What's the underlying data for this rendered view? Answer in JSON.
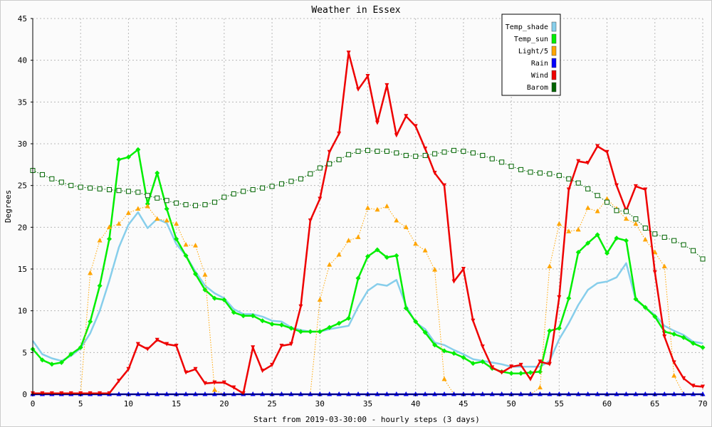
{
  "chart_data": {
    "type": "line",
    "title": "Weather in Essex",
    "xlabel": "Start from 2019-03-30:00 - hourly steps (3 days)",
    "ylabel": "Degrees",
    "xlim": [
      0,
      70
    ],
    "ylim": [
      0,
      45
    ],
    "xticks": [
      0,
      5,
      10,
      15,
      20,
      25,
      30,
      35,
      40,
      45,
      50,
      55,
      60,
      65,
      70
    ],
    "yticks": [
      0,
      5,
      10,
      15,
      20,
      25,
      30,
      35,
      40,
      45
    ],
    "grid": true,
    "legend_position": "top-right",
    "series": [
      {
        "name": "Temp_shade",
        "color": "#87ceeb",
        "line": "solid",
        "marker": "none",
        "values": [
          6.4,
          4.8,
          4.3,
          4.0,
          4.6,
          5.5,
          7.3,
          10.0,
          13.6,
          17.6,
          20.3,
          21.8,
          19.9,
          21.0,
          20.5,
          18.0,
          16.6,
          14.7,
          13.0,
          12.1,
          11.5,
          10.2,
          9.6,
          9.6,
          9.3,
          8.8,
          8.7,
          8.0,
          7.7,
          7.5,
          7.5,
          7.8,
          8.0,
          8.2,
          10.5,
          12.4,
          13.2,
          13.0,
          13.7,
          10.6,
          8.6,
          7.8,
          6.2,
          5.9,
          5.3,
          4.8,
          4.2,
          4.0,
          3.8,
          3.6,
          3.3,
          3.3,
          3.3,
          3.3,
          4.0,
          6.6,
          8.5,
          10.7,
          12.5,
          13.3,
          13.5,
          14.0,
          15.7,
          11.3,
          10.4,
          9.5,
          8.2,
          7.6,
          7.1,
          6.3,
          6.1
        ]
      },
      {
        "name": "Temp_sun",
        "color": "#00ee00",
        "line": "solid",
        "marker": "diamond",
        "values": [
          5.4,
          4.1,
          3.6,
          3.8,
          4.8,
          5.6,
          8.7,
          13.0,
          18.6,
          28.1,
          28.4,
          29.3,
          22.8,
          26.5,
          22.2,
          18.6,
          16.6,
          14.4,
          12.5,
          11.5,
          11.3,
          9.8,
          9.4,
          9.4,
          8.8,
          8.4,
          8.3,
          7.9,
          7.5,
          7.5,
          7.5,
          8.0,
          8.5,
          9.1,
          13.9,
          16.5,
          17.3,
          16.4,
          16.6,
          10.3,
          8.7,
          7.4,
          5.9,
          5.2,
          4.9,
          4.4,
          3.7,
          3.9,
          3.1,
          2.7,
          2.5,
          2.5,
          2.6,
          2.7,
          7.6,
          7.9,
          11.5,
          17.0,
          18.1,
          19.1,
          16.9,
          18.7,
          18.4,
          11.4,
          10.4,
          9.3,
          7.5,
          7.2,
          6.8,
          6.1,
          5.6
        ]
      },
      {
        "name": "Light/5",
        "color": "#ffa500",
        "line": "dotted",
        "marker": "triangle",
        "values": [
          0,
          0,
          0,
          0,
          0,
          0,
          14.5,
          18.4,
          20.0,
          20.4,
          21.7,
          22.2,
          22.5,
          21.0,
          20.8,
          20.4,
          17.9,
          17.8,
          14.3,
          0.5,
          0,
          0,
          0,
          0,
          0,
          0,
          0,
          0,
          0,
          0,
          11.3,
          15.5,
          16.7,
          18.4,
          18.8,
          22.3,
          22.1,
          22.5,
          20.8,
          20.0,
          18.0,
          17.2,
          14.9,
          1.8,
          0,
          0,
          0,
          0,
          0,
          0,
          0,
          0,
          0,
          0.8,
          15.3,
          20.4,
          19.5,
          19.7,
          22.3,
          21.9,
          23.4,
          22.2,
          21.0,
          20.4,
          18.5,
          17.0,
          15.3,
          2.2,
          0,
          0,
          0
        ]
      },
      {
        "name": "Rain",
        "color": "#0000ff",
        "line": "solid",
        "marker": "triangle",
        "values": [
          0,
          0,
          0,
          0,
          0,
          0,
          0,
          0,
          0,
          0,
          0,
          0,
          0,
          0,
          0,
          0,
          0,
          0,
          0,
          0,
          0,
          0,
          0,
          0,
          0,
          0,
          0,
          0,
          0,
          0,
          0,
          0,
          0,
          0,
          0,
          0,
          0,
          0,
          0,
          0,
          0,
          0,
          0,
          0,
          0,
          0,
          0,
          0,
          0,
          0,
          0,
          0,
          0,
          0,
          0,
          0,
          0,
          0,
          0,
          0,
          0,
          0,
          0,
          0,
          0,
          0,
          0,
          0,
          0,
          0,
          0
        ]
      },
      {
        "name": "Wind",
        "color": "#ee0000",
        "line": "solid",
        "marker": "arrow",
        "values": [
          0.1,
          0.1,
          0.1,
          0.1,
          0.1,
          0.1,
          0.1,
          0.1,
          0.1,
          1.6,
          3.0,
          6.0,
          5.4,
          6.5,
          6.0,
          5.8,
          2.6,
          3.0,
          1.3,
          1.4,
          1.4,
          0.8,
          0.1,
          5.6,
          2.8,
          3.5,
          5.8,
          6.0,
          10.5,
          20.8,
          23.4,
          29.0,
          31.2,
          40.9,
          36.5,
          38.1,
          32.5,
          37.0,
          31.0,
          33.3,
          32.1,
          29.4,
          26.5,
          25.0,
          13.5,
          15.0,
          8.8,
          5.7,
          3.2,
          2.6,
          3.3,
          3.5,
          1.8,
          3.9,
          3.6,
          11.6,
          24.5,
          27.9,
          27.7,
          29.7,
          29.0,
          25.0,
          22.0,
          24.9,
          24.5,
          14.6,
          6.9,
          3.8,
          1.9,
          1.0,
          0.9
        ]
      },
      {
        "name": "Barom",
        "color": "#006400",
        "line": "dotted",
        "marker": "square",
        "values": [
          26.8,
          26.3,
          25.8,
          25.4,
          25.0,
          24.8,
          24.7,
          24.6,
          24.5,
          24.4,
          24.3,
          24.2,
          23.8,
          23.5,
          23.2,
          22.9,
          22.7,
          22.6,
          22.7,
          23.0,
          23.6,
          24.0,
          24.3,
          24.5,
          24.7,
          24.9,
          25.2,
          25.5,
          25.8,
          26.4,
          27.1,
          27.6,
          28.1,
          28.7,
          29.1,
          29.2,
          29.1,
          29.1,
          28.9,
          28.6,
          28.5,
          28.6,
          28.8,
          29.0,
          29.2,
          29.1,
          28.9,
          28.6,
          28.2,
          27.8,
          27.3,
          26.9,
          26.6,
          26.5,
          26.4,
          26.2,
          25.8,
          25.3,
          24.6,
          23.8,
          23.0,
          22.0,
          21.9,
          21.0,
          19.9,
          19.2,
          18.8,
          18.4,
          17.9,
          17.2,
          16.2
        ]
      }
    ]
  }
}
